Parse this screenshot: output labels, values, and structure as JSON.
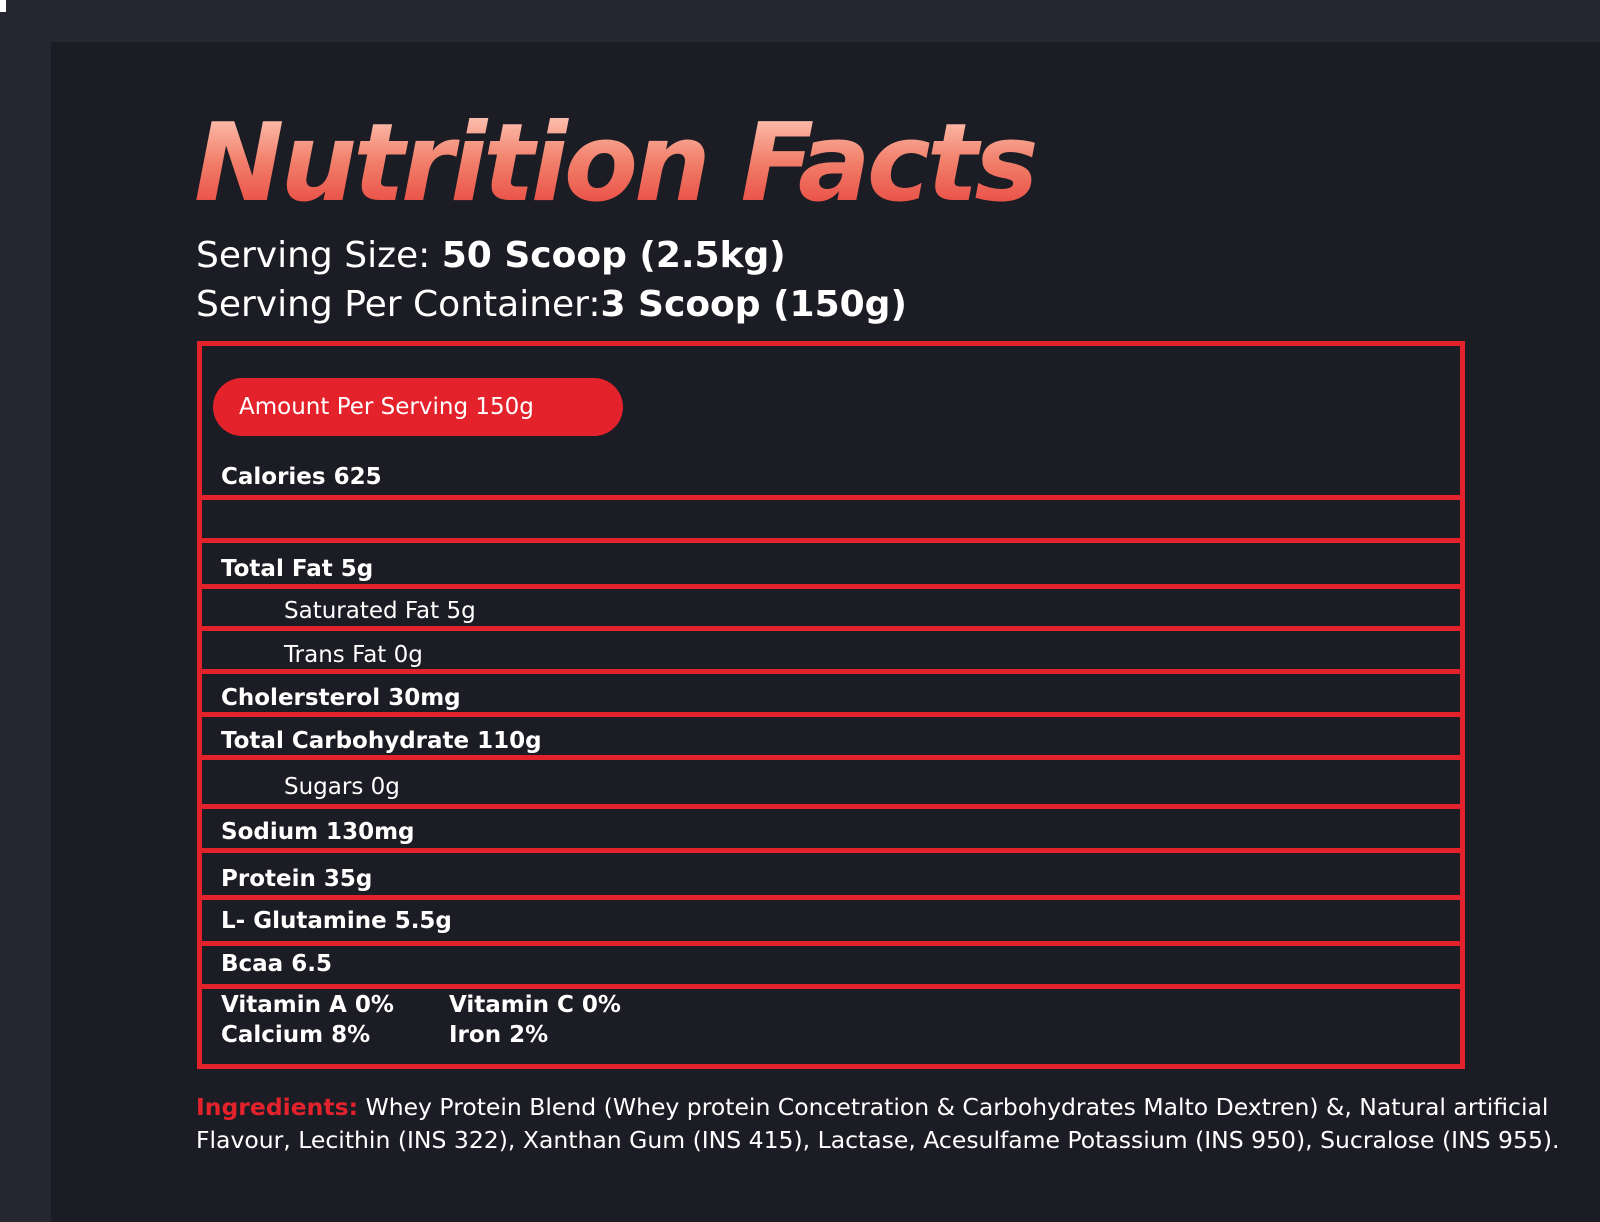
{
  "title": "Nutrition Facts",
  "serving": {
    "size_label": "Serving Size: ",
    "size_value": "50 Scoop (2.5kg)",
    "per_container_label": "Serving Per Container:",
    "per_container_value": "3 Scoop (150g)"
  },
  "facts": {
    "amount_per_serving": "Amount Per Serving 150g",
    "calories": "Calories 625",
    "rows": [
      "Total Fat 5g",
      "Saturated Fat 5g",
      "Trans Fat 0g",
      "Cholersterol 30mg",
      "Total Carbohydrate 110g",
      "Sugars 0g",
      "Sodium 130mg",
      "Protein  35g",
      "L- Glutamine 5.5g",
      "Bcaa 6.5"
    ],
    "vitamins": {
      "vitamin_a": "Vitamin A  0%",
      "vitamin_c": "Vitamin C  0%",
      "calcium": "Calcium  8%",
      "iron": "Iron  2%"
    }
  },
  "ingredients": {
    "label": "Ingredients:",
    "text": " Whey Protein Blend (Whey protein Concetration & Carbohydrates Malto Dextren) &, Natural artificial Flavour, Lecithin (INS 322), Xanthan Gum (INS 415), Lactase, Acesulfame Potassium (INS 950), Sucralose (INS 955)."
  },
  "colors": {
    "accent": "#e4222b",
    "background": "#1c1c24",
    "outer_background": "#25262f",
    "text": "#ffffff"
  }
}
